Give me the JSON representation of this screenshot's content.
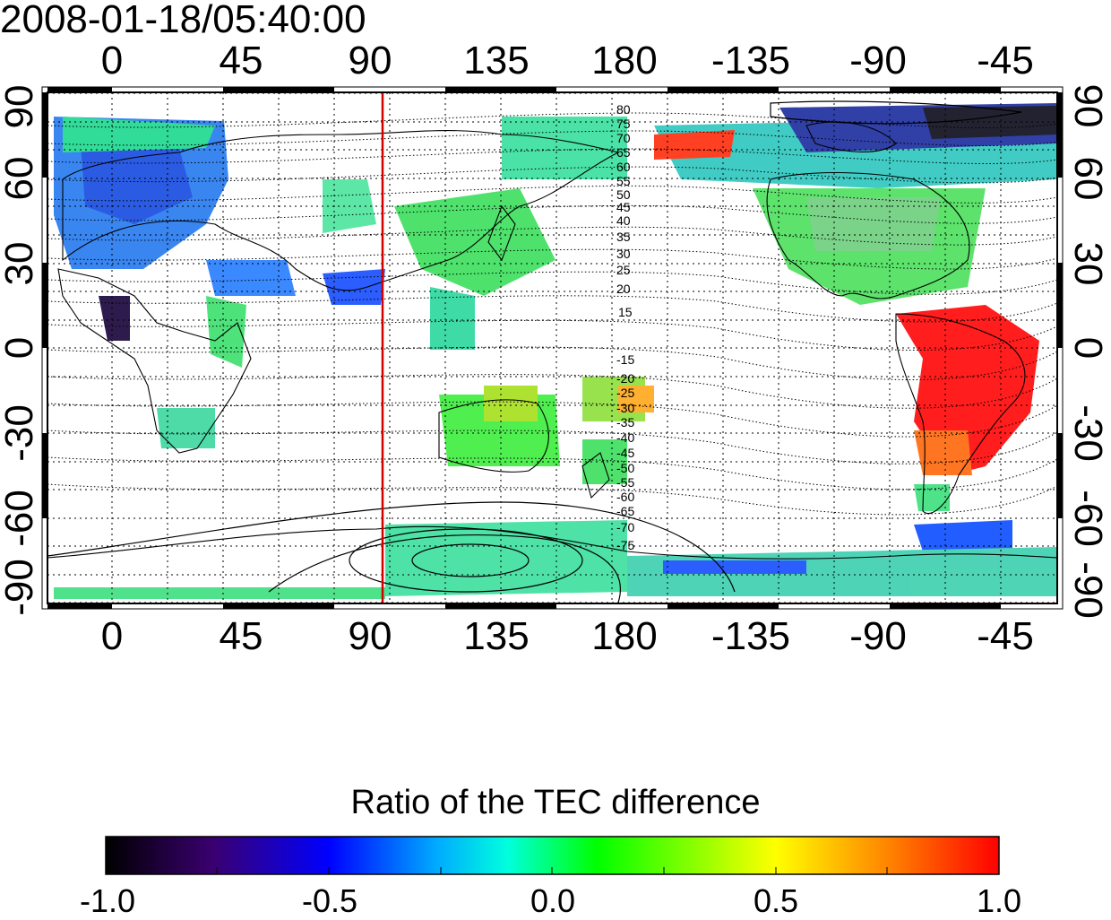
{
  "timestamp": "2008-01-18/05:40:00",
  "longitude_ticks": [
    "0",
    "45",
    "90",
    "135",
    "180",
    "-135",
    "-90",
    "-45"
  ],
  "latitude_ticks": [
    "90",
    "60",
    "30",
    "0",
    "-30",
    "-60",
    "-90"
  ],
  "contour_labels_north": [
    "80",
    "75",
    "70",
    "65",
    "60",
    "55",
    "50",
    "45",
    "40",
    "35",
    "30",
    "25",
    "20",
    "15"
  ],
  "contour_labels_south": [
    "-15",
    "-20",
    "-25",
    "-30",
    "-35",
    "-40",
    "-45",
    "-50",
    "-55",
    "-60",
    "-65",
    "-70",
    "-75"
  ],
  "terminator_longitude": 95,
  "colorbar": {
    "title": "Ratio of the TEC difference",
    "ticks": [
      "-1.0",
      "-0.5",
      "0.0",
      "0.5",
      "1.0"
    ],
    "range": [
      -1.0,
      1.0
    ]
  },
  "colors": {
    "terminator": "#d00000",
    "colormap": [
      "#000000",
      "#3a0070",
      "#0000ff",
      "#00aaff",
      "#00ffdd",
      "#00ff00",
      "#ffff00",
      "#ff8000",
      "#ff0000"
    ]
  }
}
